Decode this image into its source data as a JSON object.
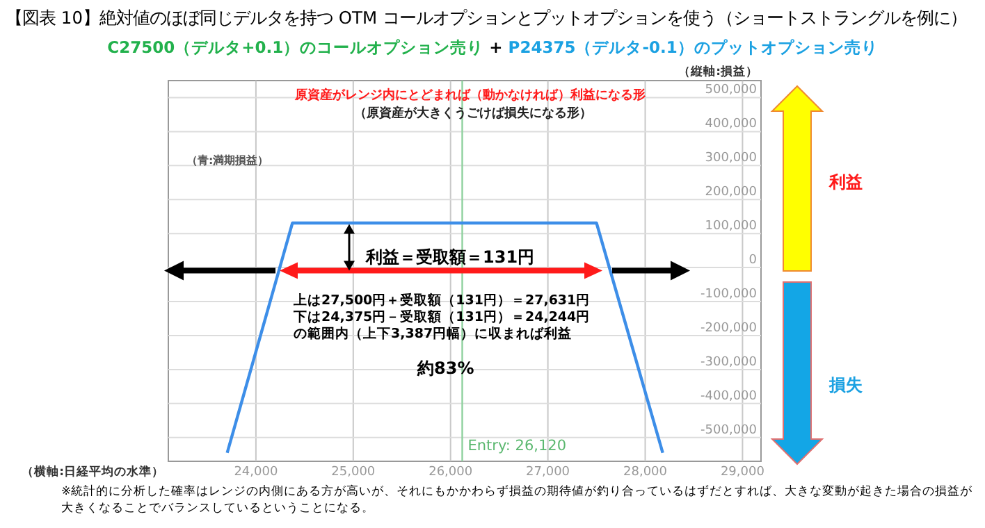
{
  "chart_data": {
    "type": "line",
    "title": "【図表 10】絶対値のほぼ同じデルタを持つ OTM コールオプションとプットオプションを使う（ショートストラングルを例に）",
    "xlabel": "（横軸:日経平均の水準）",
    "ylabel": "（縦軸:損益）",
    "x": [
      23705,
      24375,
      27500,
      28180
    ],
    "series": [
      {
        "color": "#3d8ee8",
        "values": [
          -545000,
          131000,
          131000,
          -545000
        ]
      }
    ],
    "xlim": [
      23100,
      29190
    ],
    "ylim": [
      -570000,
      550000
    ],
    "xticks": [
      {
        "value": 24000,
        "label": "24,000"
      },
      {
        "value": 25000,
        "label": "25,000"
      },
      {
        "value": 26000,
        "label": "26,000"
      },
      {
        "value": 27000,
        "label": "27,000"
      },
      {
        "value": 28000,
        "label": "28,000"
      },
      {
        "value": 29000,
        "label": "29,000"
      }
    ],
    "yticks": [
      {
        "value": -500000,
        "label": "-500,000"
      },
      {
        "value": -400000,
        "label": "-400,000"
      },
      {
        "value": -300000,
        "label": "-300,000"
      },
      {
        "value": -200000,
        "label": "-200,000"
      },
      {
        "value": -100000,
        "label": "-100,000"
      },
      0,
      {
        "value": 100000,
        "label": "100,000"
      },
      {
        "value": 200000,
        "label": "200,000"
      },
      {
        "value": 300000,
        "label": "300,000"
      },
      {
        "value": 400000,
        "label": "400,000"
      },
      {
        "value": 500000,
        "label": "500,000"
      }
    ],
    "ref_lines": [
      {
        "axis": "x",
        "value": 26120,
        "label": "Entry: 26,120",
        "color": "#8fd19e"
      }
    ],
    "grid": true,
    "marker": "none",
    "line_style": "solid",
    "annotations": [
      "C27500（デルタ+0.1）のコールオプション売り",
      "+",
      "P24375（デルタ-0.1）のプットオプション売り",
      "原資産がレンジ内にとどまれば（動かなければ）利益になる形",
      "（原資産が大きくうごけば損失になる形）",
      "（青:満期損益）",
      "利益＝受取額＝131円",
      "上は27,500円＋受取額（131円）＝27,631円",
      "下は24,375円－受取額（131円）＝24,244円",
      "の範囲内（上下3,387円幅）に収まれば利益",
      "約83%",
      "利益",
      "損失",
      "※統計的に分析した確率はレンジの内側にある方が高いが、それにもかかわらず損益の期待値が釣り合っているはずだとすれば、大きな変動が起きた場合の損益が大きくなることでバランスしているということになる。"
    ]
  }
}
